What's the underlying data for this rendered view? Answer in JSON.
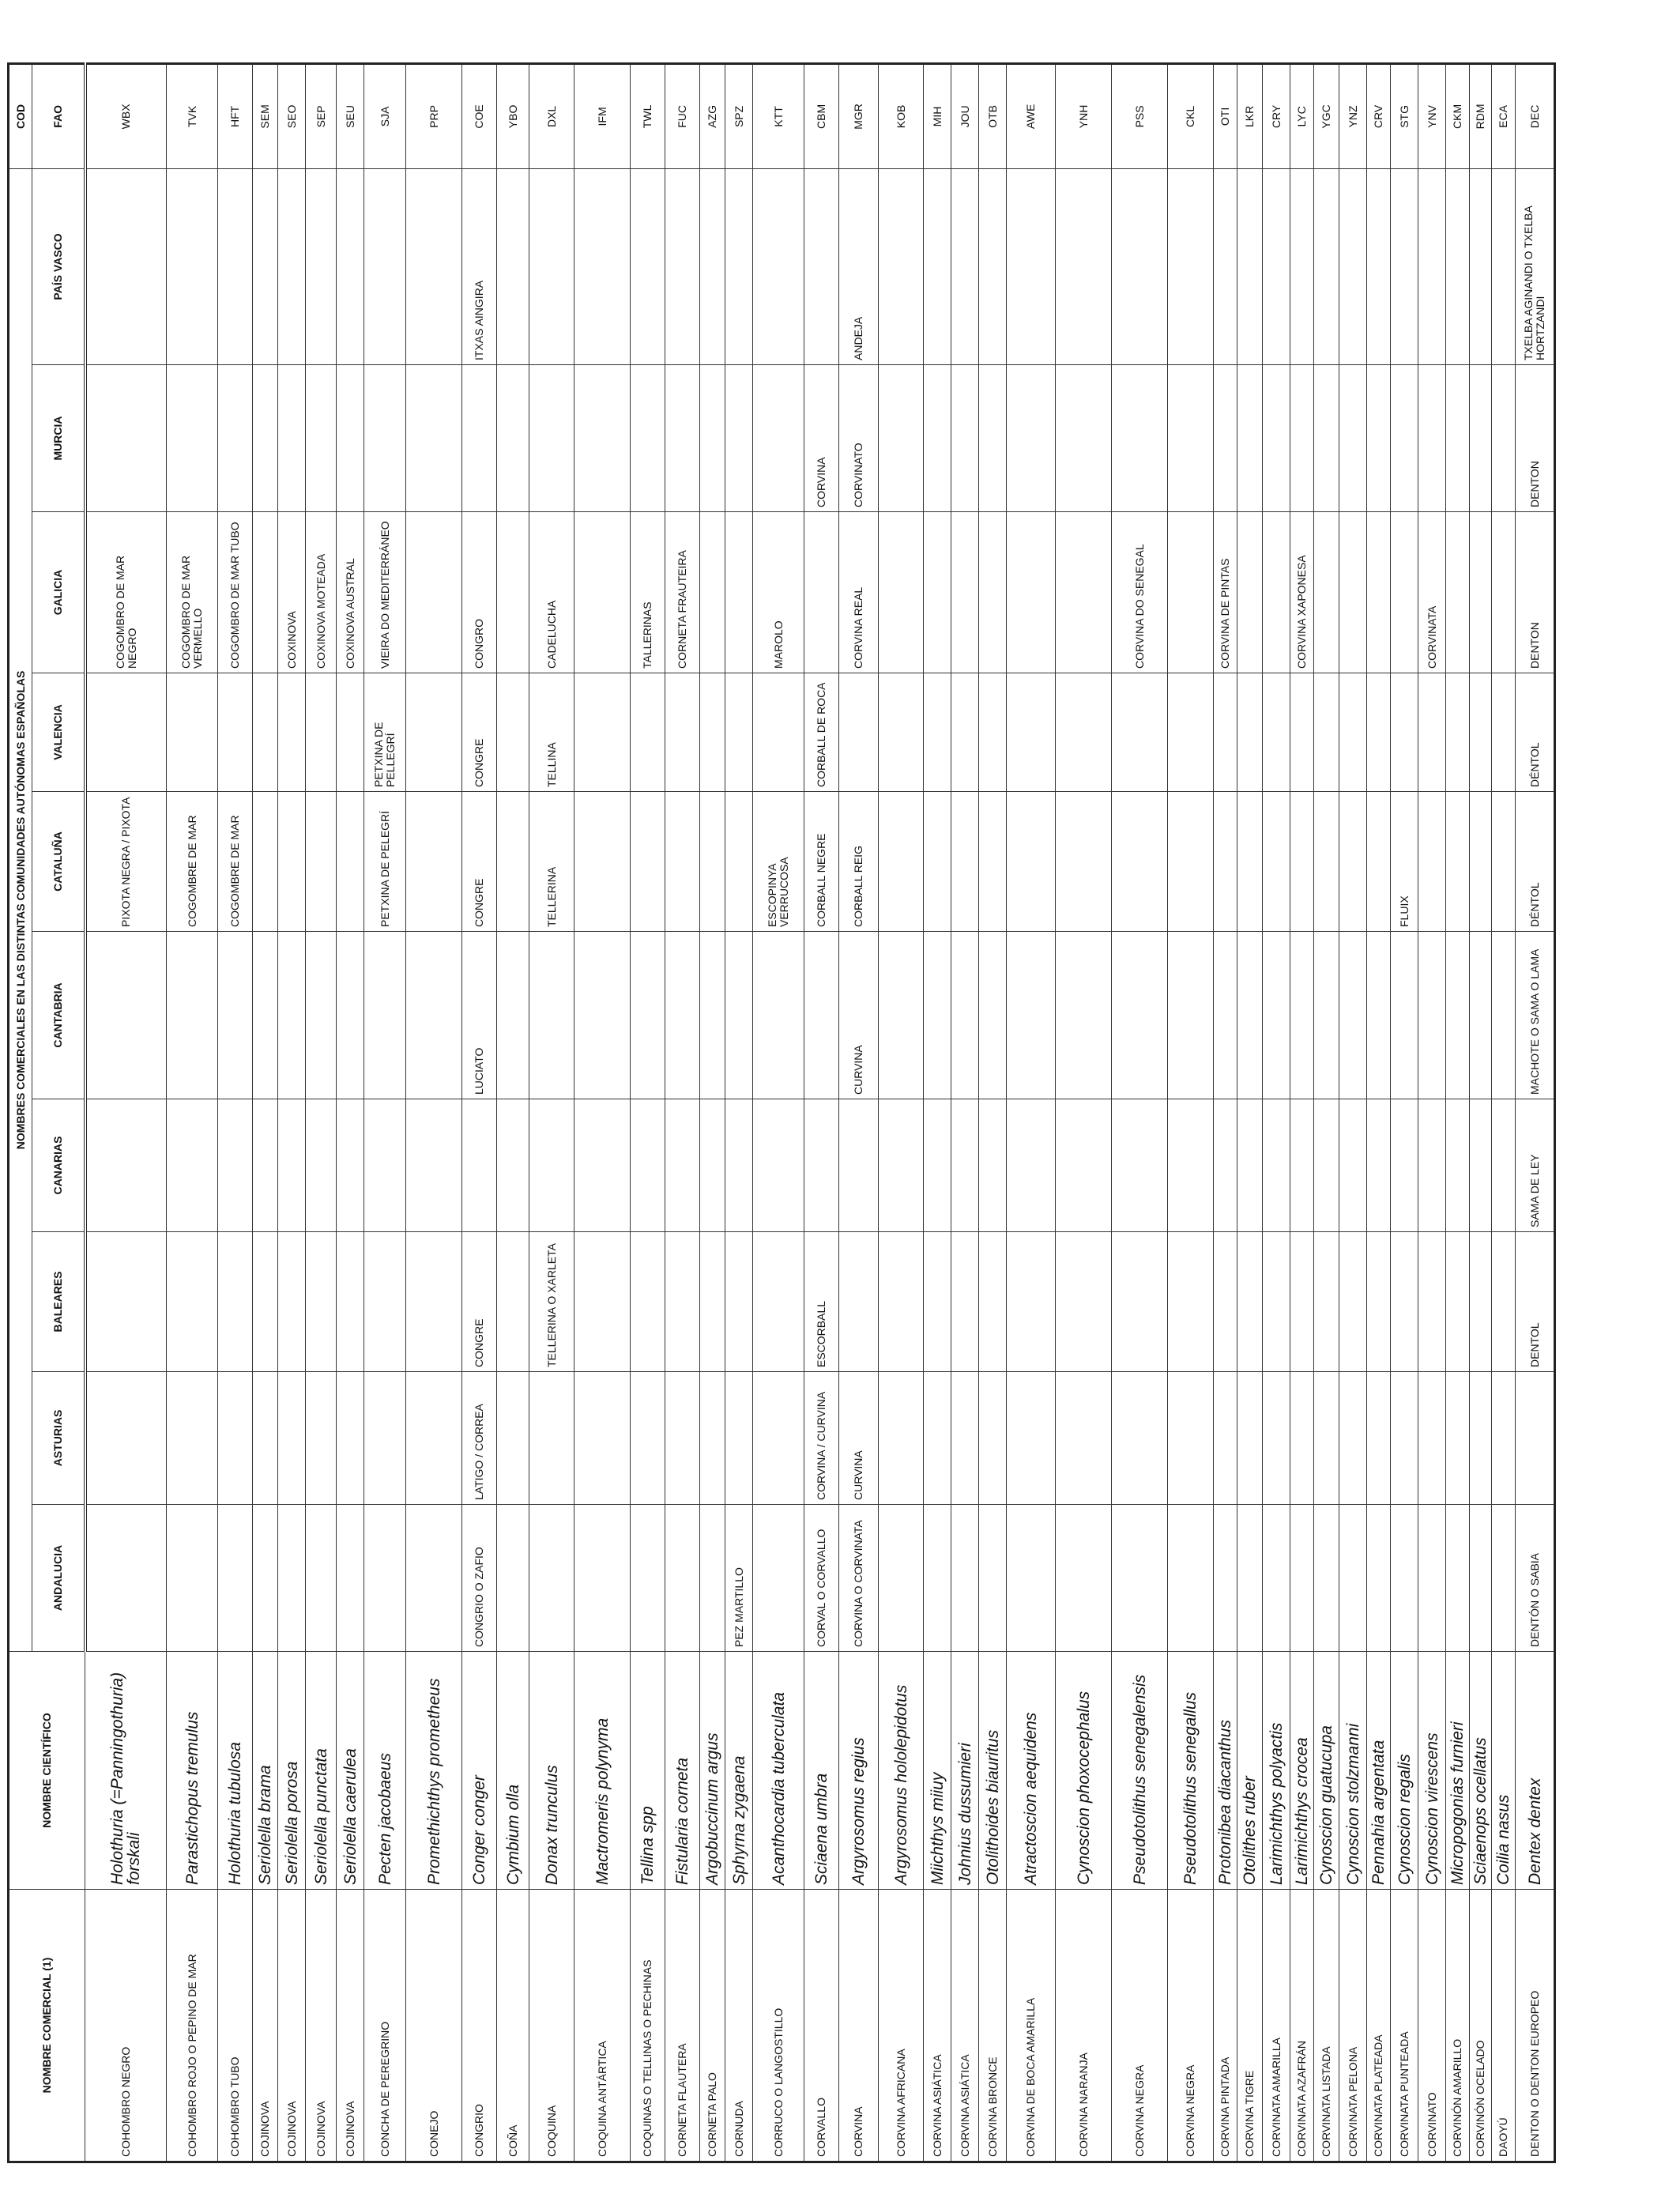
{
  "table": {
    "title": "NOMBRES COMERCIALES EN LAS DISTINTAS COMUNIDADES AUTÓNOMAS ESPAÑOLAS",
    "cod_header": "COD",
    "headers": [
      "NOMBRE COMERCIAL (1)",
      "NOMBRE CIENTÍFICO",
      "ANDALUCIA",
      "ASTURIAS",
      "BALEARES",
      "CANARIAS",
      "CANTABRIA",
      "CATALUÑA",
      "VALENCIA",
      "GALICIA",
      "MURCIA",
      "PAÍS VASCO",
      "FAO"
    ],
    "rows": [
      [
        "COHOMBRO NEGRO",
        "Holothuria (=Panningothuria) forskali",
        null,
        null,
        null,
        null,
        null,
        "PIXOTA NEGRA / PIXOTA",
        null,
        "COGOMBRO DE MAR NEGRO",
        null,
        null,
        "WBX"
      ],
      [
        "COHOMBRO ROJO O PEPINO DE MAR",
        "Parastichopus tremulus",
        null,
        null,
        null,
        null,
        null,
        "COGOMBRE DE MAR",
        null,
        "COGOMBRO DE MAR VERMELLO",
        null,
        null,
        "TVK"
      ],
      [
        "COHOMBRO TUBO",
        "Holothuria tubulosa",
        null,
        null,
        null,
        null,
        null,
        "COGOMBRE DE MAR",
        null,
        "COGOMBRO DE MAR TUBO",
        null,
        null,
        "HFT"
      ],
      [
        "COJINOVA",
        "Seriolella brama",
        null,
        null,
        null,
        null,
        null,
        null,
        null,
        null,
        null,
        null,
        "SEM"
      ],
      [
        "COJINOVA",
        "Seriolella porosa",
        null,
        null,
        null,
        null,
        null,
        null,
        null,
        "COXINOVA",
        null,
        null,
        "SEO"
      ],
      [
        "COJINOVA",
        "Seriolella punctata",
        null,
        null,
        null,
        null,
        null,
        null,
        null,
        "COXINOVA MOTEADA",
        null,
        null,
        "SEP"
      ],
      [
        "COJINOVA",
        "Seriolella caerulea",
        null,
        null,
        null,
        null,
        null,
        null,
        null,
        "COXINOVA AUSTRAL",
        null,
        null,
        "SEU"
      ],
      [
        "CONCHA DE PEREGRINO",
        "Pecten jacobaeus",
        null,
        null,
        null,
        null,
        null,
        "PETXINA DE PELEGRÍ",
        "PETXINA DE PELLEGRÍ",
        "VIEIRA DO MEDITERRÁNEO",
        null,
        null,
        "SJA"
      ],
      [
        "CONEJO",
        "Promethichthys prometheus",
        null,
        null,
        null,
        null,
        null,
        null,
        null,
        null,
        null,
        null,
        "PRP"
      ],
      [
        "CONGRIO",
        "Conger conger",
        "CONGRIO O ZAFIO",
        "LATIGO / CORREA",
        "CONGRE",
        null,
        "LUCIATO",
        "CONGRE",
        "CONGRE",
        "CONGRO",
        null,
        "ITXAS AINGIRA",
        "COE"
      ],
      [
        "COÑA",
        "Cymbium olla",
        null,
        null,
        null,
        null,
        null,
        null,
        null,
        null,
        null,
        null,
        "YBO"
      ],
      [
        "COQUINA",
        "Donax trunculus",
        null,
        null,
        "TELLERINA O XARLETA",
        null,
        null,
        "TELLERINA",
        "TELLINA",
        "CADELUCHA",
        null,
        null,
        "DXL"
      ],
      [
        "COQUINA ANTÁRTICA",
        "Mactromeris polynyma",
        null,
        null,
        null,
        null,
        null,
        null,
        null,
        null,
        null,
        null,
        "IFM"
      ],
      [
        "COQUINAS O TELLINAS O PECHINAS",
        "Tellina spp",
        null,
        null,
        null,
        null,
        null,
        null,
        null,
        "TALLERINAS",
        null,
        null,
        "TWL"
      ],
      [
        "CORNETA FLAUTERA",
        "Fistularia corneta",
        null,
        null,
        null,
        null,
        null,
        null,
        null,
        "CORNETA FRAUTEIRA",
        null,
        null,
        "FUC"
      ],
      [
        "CORNETA PALO",
        "Argobuccinum argus",
        null,
        null,
        null,
        null,
        null,
        null,
        null,
        null,
        null,
        null,
        "AZG"
      ],
      [
        "CORNUDA",
        "Sphyrna zygaena",
        "PEZ MARTILLO",
        null,
        null,
        null,
        null,
        null,
        null,
        null,
        null,
        null,
        "SPZ"
      ],
      [
        "CORRUCO O LANGOSTILLO",
        "Acanthocardia tuberculata",
        null,
        null,
        null,
        null,
        null,
        "ESCOPINYA VERRUCOSA",
        null,
        "MAROLO",
        null,
        null,
        "KTT"
      ],
      [
        "CORVALLO",
        "Sciaena umbra",
        "CORVAL O CORVALLO",
        "CORVINA / CURVINA",
        "ESCORBALL",
        null,
        null,
        "CORBALL NEGRE",
        "CORBALL DE ROCA",
        null,
        "CORVINA",
        null,
        "CBM"
      ],
      [
        "CORVINA",
        "Argyrosomus regius",
        "CORVINA O CORVINATA",
        "CURVINA",
        null,
        null,
        "CURVINA",
        "CORBALL REIG",
        null,
        "CORVINA REAL",
        "CORVINATO",
        "ANDEJA",
        "MGR"
      ],
      [
        "CORVINA AFRICANA",
        "Argyrosomus hololepidotus",
        null,
        null,
        null,
        null,
        null,
        null,
        null,
        null,
        null,
        null,
        "KOB"
      ],
      [
        "CORVINA ASIÁTICA",
        "Miichthys miiuy",
        null,
        null,
        null,
        null,
        null,
        null,
        null,
        null,
        null,
        null,
        "MIH"
      ],
      [
        "CORVINA ASIÁTICA",
        "Johnius dussumieri",
        null,
        null,
        null,
        null,
        null,
        null,
        null,
        null,
        null,
        null,
        "JOU"
      ],
      [
        "CORVINA BRONCE",
        "Otolithoides biauritus",
        null,
        null,
        null,
        null,
        null,
        null,
        null,
        null,
        null,
        null,
        "OTB"
      ],
      [
        "CORVINA DE BOCA AMARILLA",
        "Atractoscion aequidens",
        null,
        null,
        null,
        null,
        null,
        null,
        null,
        null,
        null,
        null,
        "AWE"
      ],
      [
        "CORVINA NARANJA",
        "Cynoscion phoxocephalus",
        null,
        null,
        null,
        null,
        null,
        null,
        null,
        null,
        null,
        null,
        "YNH"
      ],
      [
        "CORVINA NEGRA",
        "Pseudotolithus senegalensis",
        null,
        null,
        null,
        null,
        null,
        null,
        null,
        "CORVINA DO SENEGAL",
        null,
        null,
        "PSS"
      ],
      [
        "CORVINA NEGRA",
        "Pseudotolithus senegallus",
        null,
        null,
        null,
        null,
        null,
        null,
        null,
        null,
        null,
        null,
        "CKL"
      ],
      [
        "CORVINA PINTADA",
        "Protonibea diacanthus",
        null,
        null,
        null,
        null,
        null,
        null,
        null,
        "CORVINA DE PINTAS",
        null,
        null,
        "OTI"
      ],
      [
        "CORVINA TIGRE",
        "Otolithes ruber",
        null,
        null,
        null,
        null,
        null,
        null,
        null,
        null,
        null,
        null,
        "LKR"
      ],
      [
        "CORVINATA AMARILLA",
        "Larimichthys polyactis",
        null,
        null,
        null,
        null,
        null,
        null,
        null,
        null,
        null,
        null,
        "CRY"
      ],
      [
        "CORVINATA AZAFRÁN",
        "Larimichthys crocea",
        null,
        null,
        null,
        null,
        null,
        null,
        null,
        "CORVINA XAPONESA",
        null,
        null,
        "LYC"
      ],
      [
        "CORVINATA LISTADA",
        "Cynoscion guatucupa",
        null,
        null,
        null,
        null,
        null,
        null,
        null,
        null,
        null,
        null,
        "YGC"
      ],
      [
        "CORVINATA PELONA",
        "Cynoscion stolzmanni",
        null,
        null,
        null,
        null,
        null,
        null,
        null,
        null,
        null,
        null,
        "YNZ"
      ],
      [
        "CORVINATA PLATEADA",
        "Pennahia argentata",
        null,
        null,
        null,
        null,
        null,
        null,
        null,
        null,
        null,
        null,
        "CRV"
      ],
      [
        "CORVINATA PUNTEADA",
        "Cynoscion regalis",
        null,
        null,
        null,
        null,
        null,
        "FLUIX",
        null,
        null,
        null,
        null,
        "STG"
      ],
      [
        "CORVINATO",
        "Cynoscion virescens",
        null,
        null,
        null,
        null,
        null,
        null,
        null,
        "CORVINATA",
        null,
        null,
        "YNV"
      ],
      [
        "CORVINÓN AMARILLO",
        "Micropogonias furnieri",
        null,
        null,
        null,
        null,
        null,
        null,
        null,
        null,
        null,
        null,
        "CKM"
      ],
      [
        "CORVINÓN OCELADO",
        "Sciaenops ocellatus",
        null,
        null,
        null,
        null,
        null,
        null,
        null,
        null,
        null,
        null,
        "RDM"
      ],
      [
        "DAOYÚ",
        "Coilia nasus",
        null,
        null,
        null,
        null,
        null,
        null,
        null,
        null,
        null,
        null,
        "ECA"
      ],
      [
        "DENTON O DENTON EUROPEO",
        "Dentex dentex",
        "DENTÓN O SABIA",
        null,
        "DENTOL",
        "SAMA DE LEY",
        "MACHOTE O SAMA O LAMA",
        "DÉNTOL",
        "DÉNTOL",
        "DENTON",
        "DENTON",
        "TXELBA AGINANDI O TXELBA HORTZANDI",
        "DEC"
      ]
    ]
  }
}
